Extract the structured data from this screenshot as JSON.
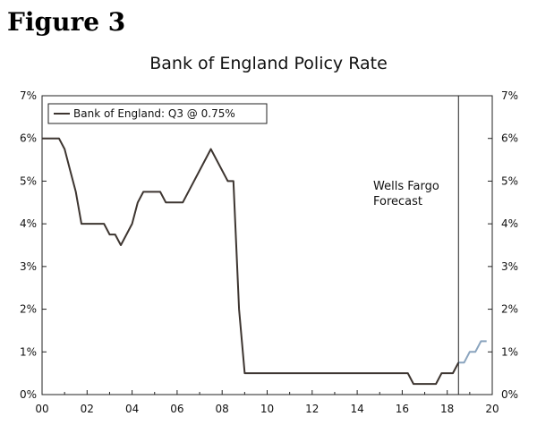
{
  "figure_label": "Figure 3",
  "chart_data": {
    "type": "line",
    "title": "Bank of England Policy Rate",
    "xlabel": "",
    "ylabel": "",
    "xlim": [
      2000,
      2020
    ],
    "ylim": [
      0,
      7
    ],
    "x_ticks": [
      {
        "value": 2000,
        "label": "00"
      },
      {
        "value": 2002,
        "label": "02"
      },
      {
        "value": 2004,
        "label": "04"
      },
      {
        "value": 2006,
        "label": "06"
      },
      {
        "value": 2008,
        "label": "08"
      },
      {
        "value": 2010,
        "label": "10"
      },
      {
        "value": 2012,
        "label": "12"
      },
      {
        "value": 2014,
        "label": "14"
      },
      {
        "value": 2016,
        "label": "16"
      },
      {
        "value": 2018,
        "label": "18"
      },
      {
        "value": 2020,
        "label": "20"
      }
    ],
    "y_ticks": [
      {
        "value": 0,
        "label": "0%"
      },
      {
        "value": 1,
        "label": "1%"
      },
      {
        "value": 2,
        "label": "2%"
      },
      {
        "value": 3,
        "label": "3%"
      },
      {
        "value": 4,
        "label": "4%"
      },
      {
        "value": 5,
        "label": "5%"
      },
      {
        "value": 6,
        "label": "6%"
      },
      {
        "value": 7,
        "label": "7%"
      }
    ],
    "legend": {
      "position": "top-left",
      "entries": [
        "Bank of England: Q3 @ 0.75%"
      ]
    },
    "series": [
      {
        "name": "Bank of England: Q3 @ 0.75%",
        "color": "#3d3530",
        "points": [
          [
            2000.0,
            6.0
          ],
          [
            2000.75,
            6.0
          ],
          [
            2001.0,
            5.75
          ],
          [
            2001.25,
            5.25
          ],
          [
            2001.5,
            4.75
          ],
          [
            2001.75,
            4.0
          ],
          [
            2002.0,
            4.0
          ],
          [
            2002.75,
            4.0
          ],
          [
            2003.0,
            3.75
          ],
          [
            2003.25,
            3.75
          ],
          [
            2003.5,
            3.5
          ],
          [
            2003.75,
            3.75
          ],
          [
            2004.0,
            4.0
          ],
          [
            2004.25,
            4.5
          ],
          [
            2004.5,
            4.75
          ],
          [
            2005.25,
            4.75
          ],
          [
            2005.5,
            4.5
          ],
          [
            2006.25,
            4.5
          ],
          [
            2007.5,
            5.75
          ],
          [
            2008.25,
            5.0
          ],
          [
            2008.5,
            5.0
          ],
          [
            2008.75,
            2.0
          ],
          [
            2009.0,
            0.5
          ],
          [
            2016.25,
            0.5
          ],
          [
            2016.5,
            0.25
          ],
          [
            2017.5,
            0.25
          ],
          [
            2017.75,
            0.5
          ],
          [
            2018.25,
            0.5
          ],
          [
            2018.5,
            0.75
          ]
        ]
      },
      {
        "name": "",
        "color": "#8aa4be",
        "points": [
          [
            2018.5,
            0.75
          ],
          [
            2018.75,
            0.75
          ],
          [
            2019.0,
            1.0
          ],
          [
            2019.25,
            1.0
          ],
          [
            2019.5,
            1.25
          ],
          [
            2019.75,
            1.25
          ]
        ]
      }
    ],
    "forecast_line_x": 2018.5,
    "annotation": {
      "lines": [
        "Wells Fargo",
        "Forecast"
      ]
    },
    "grid": false
  }
}
